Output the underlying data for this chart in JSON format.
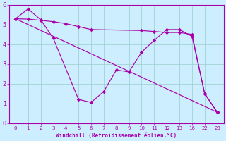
{
  "xlabel": "Windchill (Refroidissement éolien,°C)",
  "bg_color": "#cceeff",
  "line_color": "#aa00aa",
  "grid_color": "#99cccc",
  "axis_color": "#aa00aa",
  "tick_color": "#aa00aa",
  "label_color": "#aa00aa",
  "ylim": [
    0,
    6
  ],
  "yticks": [
    0,
    1,
    2,
    3,
    4,
    5,
    6
  ],
  "xtick_positions": [
    0,
    1,
    2,
    3,
    4,
    5,
    6,
    7,
    8,
    9,
    10,
    11,
    12,
    13,
    16,
    22,
    23
  ],
  "xtick_labels": [
    "0",
    "1",
    "2",
    "3",
    "4",
    "5",
    "6",
    "7",
    "8",
    "9",
    "10",
    "11",
    "12",
    "13",
    "16",
    "22",
    "23"
  ],
  "xlim": [
    -0.3,
    23.7
  ],
  "line1_x": [
    0,
    23
  ],
  "line1_y": [
    5.3,
    0.55
  ],
  "line2_x": [
    0,
    1,
    2,
    3,
    5,
    6,
    7,
    8,
    9,
    10,
    11,
    12,
    13,
    16,
    22,
    23
  ],
  "line2_y": [
    5.3,
    5.8,
    5.25,
    4.3,
    1.2,
    1.05,
    1.6,
    2.7,
    2.6,
    3.6,
    4.2,
    4.75,
    4.75,
    4.4,
    1.5,
    0.55
  ],
  "line3_x": [
    0,
    1,
    2,
    3,
    4,
    5,
    6,
    10,
    11,
    12,
    13,
    16,
    22,
    23
  ],
  "line3_y": [
    5.3,
    5.28,
    5.22,
    5.15,
    5.05,
    4.9,
    4.75,
    4.7,
    4.65,
    4.6,
    4.6,
    4.5,
    1.5,
    0.55
  ]
}
